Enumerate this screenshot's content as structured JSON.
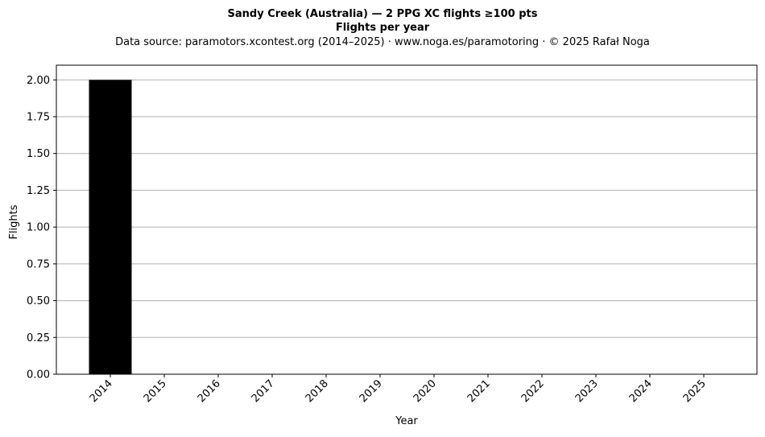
{
  "chart_data": {
    "type": "bar",
    "title": "Sandy Creek (Australia)  —  2 PPG XC flights ≥100 pts",
    "subtitle": "Flights per year",
    "source_note": "Data source: paramotors.xcontest.org (2014–2025)  ·  www.noga.es/paramotoring  ·  © 2025 Rafał Noga",
    "xlabel": "Year",
    "ylabel": "Flights",
    "categories": [
      "2014",
      "2015",
      "2016",
      "2017",
      "2018",
      "2019",
      "2020",
      "2021",
      "2022",
      "2023",
      "2024",
      "2025"
    ],
    "values": [
      2,
      0,
      0,
      0,
      0,
      0,
      0,
      0,
      0,
      0,
      0,
      0
    ],
    "ylim": [
      0,
      2.1
    ],
    "yticks": [
      "0.00",
      "0.25",
      "0.50",
      "0.75",
      "1.00",
      "1.25",
      "1.50",
      "1.75",
      "2.00"
    ],
    "grid": "y",
    "bar_color": "#000000",
    "grid_color": "#b0b0b0"
  }
}
